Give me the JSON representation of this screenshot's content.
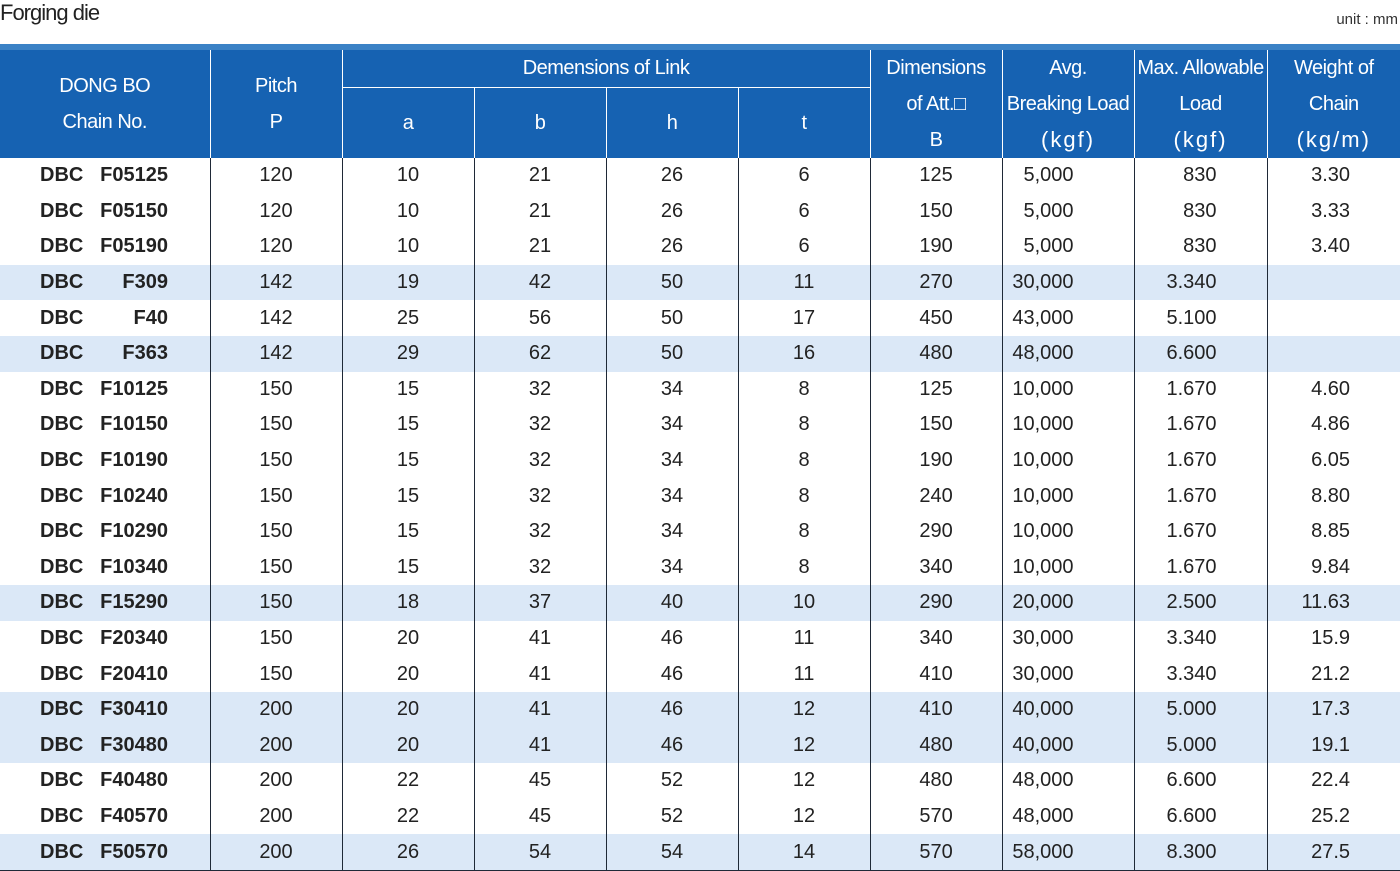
{
  "title": "Forging die",
  "unit": "unit : mm",
  "header": {
    "chain_l1": "DONG BO",
    "chain_l2": "Chain No.",
    "pitch_l1": "Pitch",
    "pitch_l2": "P",
    "link_group": "Demensions of Link",
    "a": "a",
    "b": "b",
    "h": "h",
    "t": "t",
    "dim_l1": "Dimensions",
    "dim_l2": "of Att.□",
    "dim_l3": "B",
    "brk_l1": "Avg.",
    "brk_l2": "Breaking Load",
    "brk_l3": "(kgf)",
    "max_l1": "Max. Allowable",
    "max_l2": "Load",
    "max_l3": "(kgf)",
    "wt_l1": "Weight of",
    "wt_l2": "Chain",
    "wt_l3": "(kg/m)"
  },
  "rows": [
    {
      "c1": "DBC",
      "c2": "F05125",
      "p": "120",
      "a": "10",
      "b": "21",
      "h": "26",
      "t": "6",
      "B": "125",
      "brk": "5,000",
      "max": "830",
      "wt": "3.30",
      "shade": false
    },
    {
      "c1": "DBC",
      "c2": "F05150",
      "p": "120",
      "a": "10",
      "b": "21",
      "h": "26",
      "t": "6",
      "B": "150",
      "brk": "5,000",
      "max": "830",
      "wt": "3.33",
      "shade": false
    },
    {
      "c1": "DBC",
      "c2": "F05190",
      "p": "120",
      "a": "10",
      "b": "21",
      "h": "26",
      "t": "6",
      "B": "190",
      "brk": "5,000",
      "max": "830",
      "wt": "3.40",
      "shade": false
    },
    {
      "c1": "DBC",
      "c2": "F309",
      "p": "142",
      "a": "19",
      "b": "42",
      "h": "50",
      "t": "11",
      "B": "270",
      "brk": "30,000",
      "max": "3.340",
      "wt": "",
      "shade": true
    },
    {
      "c1": "DBC",
      "c2": "F40",
      "p": "142",
      "a": "25",
      "b": "56",
      "h": "50",
      "t": "17",
      "B": "450",
      "brk": "43,000",
      "max": "5.100",
      "wt": "",
      "shade": false
    },
    {
      "c1": "DBC",
      "c2": "F363",
      "p": "142",
      "a": "29",
      "b": "62",
      "h": "50",
      "t": "16",
      "B": "480",
      "brk": "48,000",
      "max": "6.600",
      "wt": "",
      "shade": true
    },
    {
      "c1": "DBC",
      "c2": "F10125",
      "p": "150",
      "a": "15",
      "b": "32",
      "h": "34",
      "t": "8",
      "B": "125",
      "brk": "10,000",
      "max": "1.670",
      "wt": "4.60",
      "shade": false
    },
    {
      "c1": "DBC",
      "c2": "F10150",
      "p": "150",
      "a": "15",
      "b": "32",
      "h": "34",
      "t": "8",
      "B": "150",
      "brk": "10,000",
      "max": "1.670",
      "wt": "4.86",
      "shade": false
    },
    {
      "c1": "DBC",
      "c2": "F10190",
      "p": "150",
      "a": "15",
      "b": "32",
      "h": "34",
      "t": "8",
      "B": "190",
      "brk": "10,000",
      "max": "1.670",
      "wt": "6.05",
      "shade": false
    },
    {
      "c1": "DBC",
      "c2": "F10240",
      "p": "150",
      "a": "15",
      "b": "32",
      "h": "34",
      "t": "8",
      "B": "240",
      "brk": "10,000",
      "max": "1.670",
      "wt": "8.80",
      "shade": false
    },
    {
      "c1": "DBC",
      "c2": "F10290",
      "p": "150",
      "a": "15",
      "b": "32",
      "h": "34",
      "t": "8",
      "B": "290",
      "brk": "10,000",
      "max": "1.670",
      "wt": "8.85",
      "shade": false
    },
    {
      "c1": "DBC",
      "c2": "F10340",
      "p": "150",
      "a": "15",
      "b": "32",
      "h": "34",
      "t": "8",
      "B": "340",
      "brk": "10,000",
      "max": "1.670",
      "wt": "9.84",
      "shade": false
    },
    {
      "c1": "DBC",
      "c2": "F15290",
      "p": "150",
      "a": "18",
      "b": "37",
      "h": "40",
      "t": "10",
      "B": "290",
      "brk": "20,000",
      "max": "2.500",
      "wt": "11.63",
      "shade": true
    },
    {
      "c1": "DBC",
      "c2": "F20340",
      "p": "150",
      "a": "20",
      "b": "41",
      "h": "46",
      "t": "11",
      "B": "340",
      "brk": "30,000",
      "max": "3.340",
      "wt": "15.9",
      "shade": false
    },
    {
      "c1": "DBC",
      "c2": "F20410",
      "p": "150",
      "a": "20",
      "b": "41",
      "h": "46",
      "t": "11",
      "B": "410",
      "brk": "30,000",
      "max": "3.340",
      "wt": "21.2",
      "shade": false
    },
    {
      "c1": "DBC",
      "c2": "F30410",
      "p": "200",
      "a": "20",
      "b": "41",
      "h": "46",
      "t": "12",
      "B": "410",
      "brk": "40,000",
      "max": "5.000",
      "wt": "17.3",
      "shade": true
    },
    {
      "c1": "DBC",
      "c2": "F30480",
      "p": "200",
      "a": "20",
      "b": "41",
      "h": "46",
      "t": "12",
      "B": "480",
      "brk": "40,000",
      "max": "5.000",
      "wt": "19.1",
      "shade": true
    },
    {
      "c1": "DBC",
      "c2": "F40480",
      "p": "200",
      "a": "22",
      "b": "45",
      "h": "52",
      "t": "12",
      "B": "480",
      "brk": "48,000",
      "max": "6.600",
      "wt": "22.4",
      "shade": false
    },
    {
      "c1": "DBC",
      "c2": "F40570",
      "p": "200",
      "a": "22",
      "b": "45",
      "h": "52",
      "t": "12",
      "B": "570",
      "brk": "48,000",
      "max": "6.600",
      "wt": "25.2",
      "shade": false
    },
    {
      "c1": "DBC",
      "c2": "F50570",
      "p": "200",
      "a": "26",
      "b": "54",
      "h": "54",
      "t": "14",
      "B": "570",
      "brk": "58,000",
      "max": "8.300",
      "wt": "27.5",
      "shade": true
    }
  ]
}
